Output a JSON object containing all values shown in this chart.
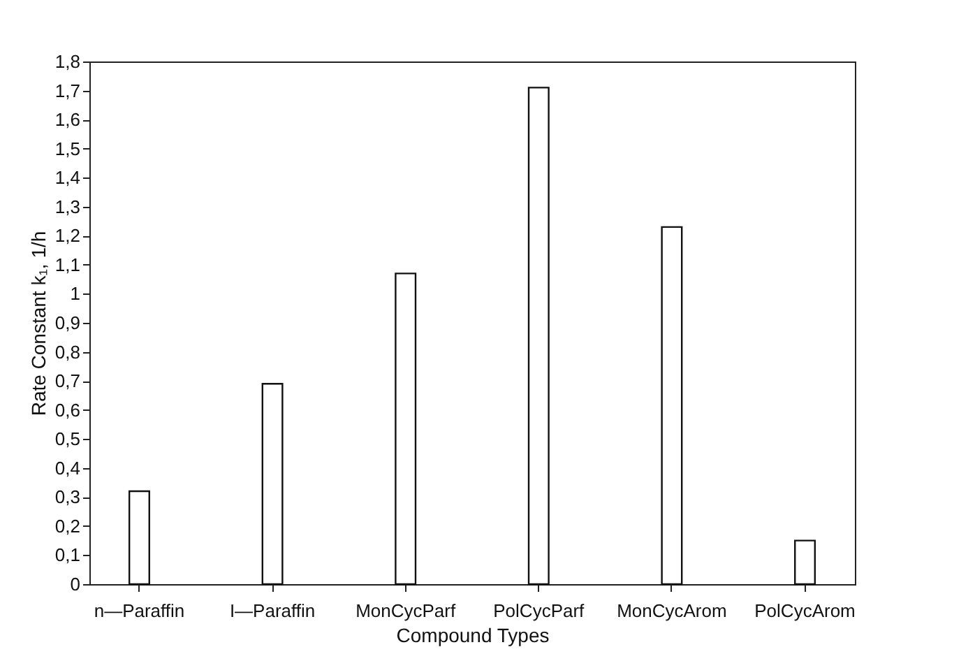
{
  "chart_data": {
    "type": "bar",
    "xlabel": "Compound Types",
    "ylabel": "Rate Constant k₁, 1/h",
    "categories": [
      "n—Paraffin",
      "I—Paraffin",
      "MonCycParf",
      "PolCycParf",
      "MonCycArom",
      "PolCycArom"
    ],
    "values": [
      0.32,
      0.69,
      1.07,
      1.71,
      1.23,
      0.15
    ],
    "color": "#ffffff",
    "ylim": [
      0,
      1.8
    ],
    "yticks": [
      {
        "value": 0,
        "label": "0"
      },
      {
        "value": 0.1,
        "label": "0,1"
      },
      {
        "value": 0.2,
        "label": "0,2"
      },
      {
        "value": 0.3,
        "label": "0,3"
      },
      {
        "value": 0.4,
        "label": "0,4"
      },
      {
        "value": 0.5,
        "label": "0,5"
      },
      {
        "value": 0.6,
        "label": "0,6"
      },
      {
        "value": 0.7,
        "label": "0,7"
      },
      {
        "value": 0.8,
        "label": "0,8"
      },
      {
        "value": 0.9,
        "label": "0,9"
      },
      {
        "value": 1,
        "label": "1"
      },
      {
        "value": 1.1,
        "label": "1,1"
      },
      {
        "value": 1.2,
        "label": "1,2"
      },
      {
        "value": 1.3,
        "label": "1,3"
      },
      {
        "value": 1.4,
        "label": "1,4"
      },
      {
        "value": 1.5,
        "label": "1,5"
      },
      {
        "value": 1.6,
        "label": "1,6"
      },
      {
        "value": 1.7,
        "label": "1,7"
      },
      {
        "value": 1.8,
        "label": "1,8"
      }
    ],
    "grid": false
  }
}
